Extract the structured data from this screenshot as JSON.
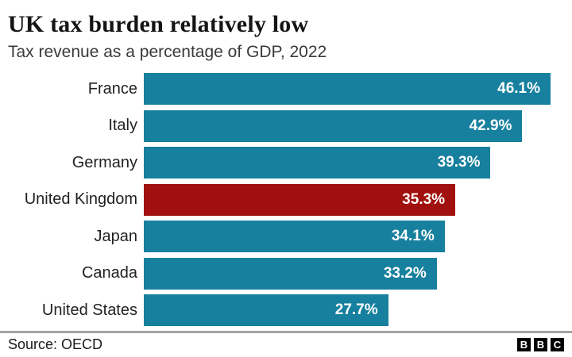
{
  "header": {
    "title": "UK tax burden relatively low",
    "subtitle": "Tax revenue as a percentage of GDP, 2022"
  },
  "chart_data": {
    "type": "bar",
    "orientation": "horizontal",
    "title": "UK tax burden relatively low",
    "subtitle": "Tax revenue as a percentage of GDP, 2022",
    "categories": [
      "France",
      "Italy",
      "Germany",
      "United Kingdom",
      "Japan",
      "Canada",
      "United States"
    ],
    "values": [
      46.1,
      42.9,
      39.3,
      35.3,
      34.1,
      33.2,
      27.7
    ],
    "value_labels": [
      "46.1%",
      "42.9%",
      "39.3%",
      "35.3%",
      "34.1%",
      "33.2%",
      "27.7%"
    ],
    "highlight_category": "United Kingdom",
    "bar_color": "#17809E",
    "highlight_color": "#A1100E",
    "xlabel": "",
    "ylabel": "",
    "xlim": [
      0,
      46.1
    ],
    "grid": false,
    "legend": false,
    "value_labels_inside_bar": true
  },
  "footer": {
    "source": "Source: OECD",
    "logo_letters": [
      "B",
      "B",
      "C"
    ]
  }
}
